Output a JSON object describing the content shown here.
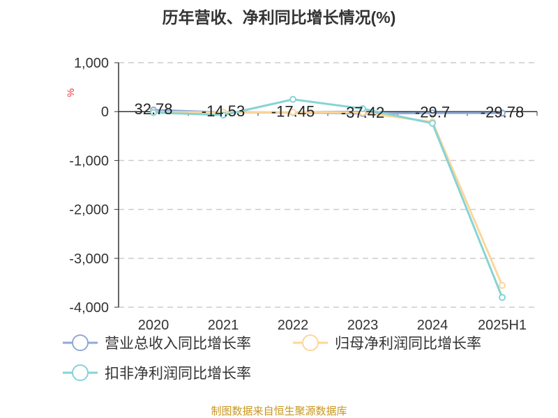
{
  "chart_data": {
    "type": "line",
    "title": "历年营收、净利同比增长情况(%)",
    "ylabel": "%",
    "categories": [
      "2020",
      "2021",
      "2022",
      "2023",
      "2024",
      "2025H1"
    ],
    "ylim": [
      -4000,
      1000
    ],
    "yticks": [
      1000,
      0,
      -1000,
      -2000,
      -3000,
      -4000
    ],
    "ytick_labels": [
      "1,000",
      "0",
      "-1,000",
      "-2,000",
      "-3,000",
      "-4,000"
    ],
    "grid": true,
    "legend_position": "bottom",
    "series": [
      {
        "name": "营业总收入同比增长率",
        "color": "#8fa9d8",
        "values": [
          32.78,
          -14.53,
          -17.45,
          -37.42,
          -29.7,
          -29.78
        ],
        "labels": [
          "32.78",
          "-14.53",
          "-17.45",
          "-37.42",
          "-29.7",
          "-29.78"
        ]
      },
      {
        "name": "归母净利润同比增长率",
        "color": "#fdd699",
        "values": [
          -10,
          -15,
          -10,
          -20,
          -210,
          -3555
        ]
      },
      {
        "name": "扣非净利润同比增长率",
        "color": "#86d3d6",
        "values": [
          -20,
          -70,
          250,
          60,
          -240,
          -3800
        ]
      }
    ],
    "source": "制图数据来自恒生聚源数据库"
  }
}
